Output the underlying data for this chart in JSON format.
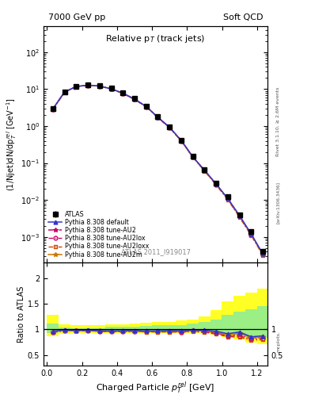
{
  "title_left": "7000 GeV pp",
  "title_right": "Soft QCD",
  "plot_title": "Relative p$_T$ (track jets)",
  "ylabel_main": "(1/Njet)dN/dp$_T^{rel}$ [GeV$^{-1}$]",
  "ylabel_ratio": "Ratio to ATLAS",
  "xlabel": "Charged Particle $p_T^{rel}$ [GeV]",
  "right_label_main": "Rivet 3.1.10, ≥ 2.6M events",
  "right_label_ratio": "mcplots.",
  "atlas_label": "ATLAS 2011_I919017",
  "arxiv_label": "[arXiv:1306.3436]",
  "x_data": [
    0.033,
    0.1,
    0.167,
    0.233,
    0.3,
    0.367,
    0.433,
    0.5,
    0.567,
    0.633,
    0.7,
    0.767,
    0.833,
    0.9,
    0.967,
    1.033,
    1.1,
    1.167,
    1.233
  ],
  "atlas_y": [
    3.0,
    8.5,
    12.0,
    13.0,
    12.5,
    10.5,
    8.0,
    5.5,
    3.5,
    1.8,
    0.95,
    0.42,
    0.15,
    0.065,
    0.028,
    0.012,
    0.004,
    0.0014,
    0.0004
  ],
  "atlas_yerr": [
    0.3,
    0.5,
    0.6,
    0.7,
    0.6,
    0.5,
    0.4,
    0.3,
    0.18,
    0.1,
    0.06,
    0.025,
    0.01,
    0.005,
    0.002,
    0.001,
    0.0004,
    0.00015,
    5e-05
  ],
  "pythia_default_y": [
    2.9,
    8.4,
    11.8,
    12.8,
    12.2,
    10.2,
    7.8,
    5.4,
    3.4,
    1.75,
    0.93,
    0.41,
    0.148,
    0.064,
    0.027,
    0.011,
    0.0038,
    0.0012,
    0.00035
  ],
  "pythia_au2_y": [
    2.85,
    8.3,
    11.7,
    12.7,
    12.1,
    10.1,
    7.7,
    5.3,
    3.35,
    1.72,
    0.91,
    0.4,
    0.146,
    0.062,
    0.026,
    0.0105,
    0.0036,
    0.00115,
    0.00034
  ],
  "pythia_au2lox_y": [
    2.85,
    8.3,
    11.7,
    12.7,
    12.1,
    10.1,
    7.7,
    5.3,
    3.35,
    1.72,
    0.91,
    0.4,
    0.146,
    0.062,
    0.026,
    0.0104,
    0.0035,
    0.00113,
    0.00033
  ],
  "pythia_au2loxx_y": [
    2.84,
    8.28,
    11.65,
    12.65,
    12.05,
    10.05,
    7.65,
    5.28,
    3.33,
    1.71,
    0.905,
    0.398,
    0.144,
    0.061,
    0.0255,
    0.0103,
    0.0034,
    0.0011,
    0.00032
  ],
  "pythia_au2m_y": [
    2.88,
    8.35,
    11.75,
    12.75,
    12.15,
    10.15,
    7.72,
    5.32,
    3.36,
    1.73,
    0.92,
    0.405,
    0.147,
    0.063,
    0.0265,
    0.0107,
    0.0037,
    0.00118,
    0.00034
  ],
  "band_yellow_lo": [
    0.87,
    0.92,
    0.93,
    0.93,
    0.93,
    0.93,
    0.93,
    0.93,
    0.93,
    0.93,
    0.93,
    0.93,
    0.93,
    0.93,
    0.9,
    0.85,
    0.8,
    0.75,
    0.72
  ],
  "band_yellow_hi": [
    1.28,
    1.1,
    1.08,
    1.08,
    1.08,
    1.1,
    1.1,
    1.12,
    1.13,
    1.14,
    1.15,
    1.17,
    1.2,
    1.25,
    1.38,
    1.55,
    1.65,
    1.72,
    1.8
  ],
  "band_green_lo": [
    0.93,
    0.96,
    0.97,
    0.97,
    0.97,
    0.97,
    0.97,
    0.97,
    0.97,
    0.97,
    0.97,
    0.97,
    0.97,
    0.97,
    0.95,
    0.92,
    0.89,
    0.86,
    0.84
  ],
  "band_green_hi": [
    1.12,
    1.04,
    1.03,
    1.03,
    1.03,
    1.05,
    1.05,
    1.06,
    1.07,
    1.08,
    1.08,
    1.09,
    1.11,
    1.14,
    1.2,
    1.28,
    1.35,
    1.4,
    1.45
  ],
  "color_atlas": "#000000",
  "color_default": "#3333cc",
  "color_au2": "#cc0066",
  "color_au2lox": "#cc0066",
  "color_au2loxx": "#cc4400",
  "color_au2m": "#cc7700",
  "ylim_main": [
    0.0002,
    500
  ],
  "ylim_ratio": [
    0.3,
    2.3
  ],
  "xlim": [
    -0.02,
    1.26
  ],
  "ratio_yticks": [
    0.5,
    1.0,
    1.5,
    2.0
  ],
  "ratio_yticklabels": [
    "0.5",
    "1",
    "1.5",
    "2"
  ]
}
